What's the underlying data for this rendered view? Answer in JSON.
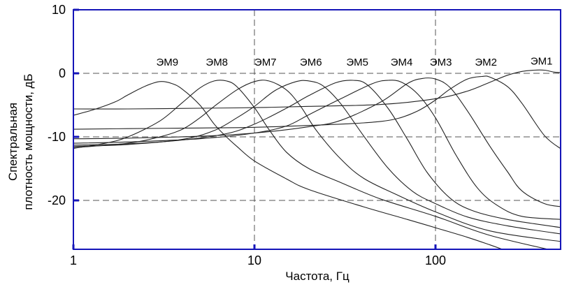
{
  "chart_data": {
    "type": "line",
    "title": "",
    "xlabel": "Частота, Гц",
    "ylabel_line1": "Спектральная",
    "ylabel_line2": "плотность мощности, дБ",
    "xscale": "log",
    "xlim": [
      1,
      500
    ],
    "ylim": [
      -28,
      10
    ],
    "grid": "dashed at x=10,100 and y=0,-10,-20",
    "xticks": [
      {
        "value": 1,
        "label": "1"
      },
      {
        "value": 10,
        "label": "10"
      },
      {
        "value": 100,
        "label": "100"
      }
    ],
    "yticks": [
      {
        "value": 10,
        "label": "10"
      },
      {
        "value": 0,
        "label": "0"
      },
      {
        "value": -10,
        "label": "-10"
      },
      {
        "value": -20,
        "label": "-20"
      }
    ],
    "colors": {
      "axis": "#1515b8",
      "line": "#222222",
      "grid": "#555555"
    },
    "series": [
      {
        "name": "ЭМ1",
        "label_at": [
          385,
          1.4
        ],
        "points": [
          [
            1,
            -5.6
          ],
          [
            2,
            -5.6
          ],
          [
            5,
            -5.5
          ],
          [
            10,
            -5.4
          ],
          [
            20,
            -5.2
          ],
          [
            50,
            -4.9
          ],
          [
            100,
            -4.0
          ],
          [
            150,
            -2.8
          ],
          [
            200,
            -1.4
          ],
          [
            250,
            -0.3
          ],
          [
            300,
            0.3
          ],
          [
            350,
            0.5
          ],
          [
            400,
            0.5
          ],
          [
            450,
            0.2
          ],
          [
            500,
            0.1
          ]
        ]
      },
      {
        "name": "ЭМ2",
        "label_at": [
          190,
          1.2
        ],
        "points": [
          [
            1,
            -8.8
          ],
          [
            2,
            -8.7
          ],
          [
            5,
            -8.6
          ],
          [
            10,
            -8.5
          ],
          [
            20,
            -8.2
          ],
          [
            40,
            -7.8
          ],
          [
            60,
            -7.2
          ],
          [
            80,
            -5.9
          ],
          [
            100,
            -4.2
          ],
          [
            120,
            -2.5
          ],
          [
            150,
            -0.9
          ],
          [
            180,
            -0.5
          ],
          [
            200,
            -0.6
          ],
          [
            250,
            -2.1
          ],
          [
            300,
            -4.7
          ],
          [
            400,
            -9.8
          ],
          [
            500,
            -12.0
          ]
        ]
      },
      {
        "name": "ЭМ3",
        "label_at": [
          107,
          1.2
        ],
        "points": [
          [
            1,
            -10.3
          ],
          [
            2,
            -10.2
          ],
          [
            5,
            -9.9
          ],
          [
            10,
            -9.4
          ],
          [
            20,
            -8.4
          ],
          [
            30,
            -7.4
          ],
          [
            50,
            -4.5
          ],
          [
            70,
            -1.6
          ],
          [
            85,
            -0.8
          ],
          [
            100,
            -0.9
          ],
          [
            120,
            -2.2
          ],
          [
            150,
            -5.9
          ],
          [
            200,
            -11.5
          ],
          [
            250,
            -15.5
          ],
          [
            300,
            -18.5
          ],
          [
            400,
            -20.5
          ],
          [
            500,
            -21.0
          ]
        ]
      },
      {
        "name": "ЭМ4",
        "label_at": [
          65,
          1.2
        ],
        "points": [
          [
            1,
            -11.0
          ],
          [
            2,
            -10.8
          ],
          [
            5,
            -10.3
          ],
          [
            10,
            -9.4
          ],
          [
            15,
            -8.3
          ],
          [
            20,
            -6.5
          ],
          [
            30,
            -4.0
          ],
          [
            45,
            -1.6
          ],
          [
            55,
            -1.1
          ],
          [
            65,
            -1.4
          ],
          [
            80,
            -3.3
          ],
          [
            100,
            -7.0
          ],
          [
            130,
            -12.9
          ],
          [
            170,
            -18.0
          ],
          [
            220,
            -20.8
          ],
          [
            300,
            -22.5
          ],
          [
            500,
            -23.0
          ]
        ]
      },
      {
        "name": "ЭМ5",
        "label_at": [
          37,
          1.2
        ],
        "points": [
          [
            1,
            -11.3
          ],
          [
            2,
            -11.1
          ],
          [
            4,
            -10.5
          ],
          [
            7,
            -9.5
          ],
          [
            10,
            -8.0
          ],
          [
            15,
            -5.5
          ],
          [
            20,
            -3.5
          ],
          [
            28,
            -1.5
          ],
          [
            35,
            -1.1
          ],
          [
            42,
            -1.8
          ],
          [
            55,
            -5.6
          ],
          [
            70,
            -10.4
          ],
          [
            90,
            -15.6
          ],
          [
            120,
            -19.6
          ],
          [
            160,
            -21.6
          ],
          [
            250,
            -23.0
          ],
          [
            500,
            -24.3
          ]
        ]
      },
      {
        "name": "ЭМ6",
        "label_at": [
          20.5,
          1.2
        ],
        "points": [
          [
            1,
            -11.5
          ],
          [
            2,
            -11.2
          ],
          [
            4,
            -10.4
          ],
          [
            6,
            -9.0
          ],
          [
            8,
            -7.0
          ],
          [
            10,
            -5.2
          ],
          [
            13,
            -2.7
          ],
          [
            17,
            -1.3
          ],
          [
            20,
            -1.2
          ],
          [
            24,
            -2.0
          ],
          [
            30,
            -4.8
          ],
          [
            40,
            -9.8
          ],
          [
            55,
            -15.0
          ],
          [
            75,
            -18.6
          ],
          [
            100,
            -20.5
          ],
          [
            150,
            -22.6
          ],
          [
            250,
            -24.0
          ],
          [
            500,
            -25.3
          ]
        ]
      },
      {
        "name": "ЭМ7",
        "label_at": [
          11.5,
          1.2
        ],
        "points": [
          [
            1,
            -11.7
          ],
          [
            2,
            -11.0
          ],
          [
            3,
            -10.0
          ],
          [
            4,
            -8.8
          ],
          [
            5,
            -7.0
          ],
          [
            6,
            -5.2
          ],
          [
            8,
            -2.6
          ],
          [
            10,
            -1.3
          ],
          [
            12,
            -1.2
          ],
          [
            15,
            -2.6
          ],
          [
            18,
            -5.2
          ],
          [
            22,
            -9.0
          ],
          [
            30,
            -13.5
          ],
          [
            40,
            -16.5
          ],
          [
            60,
            -19.0
          ],
          [
            100,
            -21.8
          ],
          [
            200,
            -24.8
          ],
          [
            500,
            -26.5
          ]
        ]
      },
      {
        "name": "ЭМ8",
        "label_at": [
          6.2,
          1.2
        ],
        "points": [
          [
            1,
            -11.8
          ],
          [
            1.5,
            -11.0
          ],
          [
            2,
            -10.0
          ],
          [
            3,
            -7.5
          ],
          [
            4,
            -4.6
          ],
          [
            5,
            -2.3
          ],
          [
            6,
            -1.2
          ],
          [
            7,
            -1.2
          ],
          [
            8,
            -2.1
          ],
          [
            10,
            -5.4
          ],
          [
            12,
            -8.8
          ],
          [
            15,
            -12.4
          ],
          [
            20,
            -15.0
          ],
          [
            30,
            -17.2
          ],
          [
            50,
            -19.8
          ],
          [
            100,
            -22.5
          ],
          [
            200,
            -25.5
          ],
          [
            500,
            -28.2
          ]
        ]
      },
      {
        "name": "ЭМ9",
        "label_at": [
          3.3,
          1.2
        ],
        "points": [
          [
            1,
            -6.6
          ],
          [
            1.3,
            -5.7
          ],
          [
            1.7,
            -4.5
          ],
          [
            2,
            -3.4
          ],
          [
            2.5,
            -2.0
          ],
          [
            3,
            -1.3
          ],
          [
            3.5,
            -1.6
          ],
          [
            4,
            -2.5
          ],
          [
            5,
            -5.0
          ],
          [
            6,
            -8.0
          ],
          [
            7,
            -10.0
          ],
          [
            8,
            -11.5
          ],
          [
            10,
            -13.8
          ],
          [
            15,
            -16.6
          ],
          [
            20,
            -18.3
          ],
          [
            40,
            -21.0
          ],
          [
            70,
            -23.0
          ],
          [
            100,
            -24.3
          ],
          [
            150,
            -25.8
          ],
          [
            200,
            -27.0
          ],
          [
            250,
            -28.0
          ]
        ]
      }
    ]
  }
}
